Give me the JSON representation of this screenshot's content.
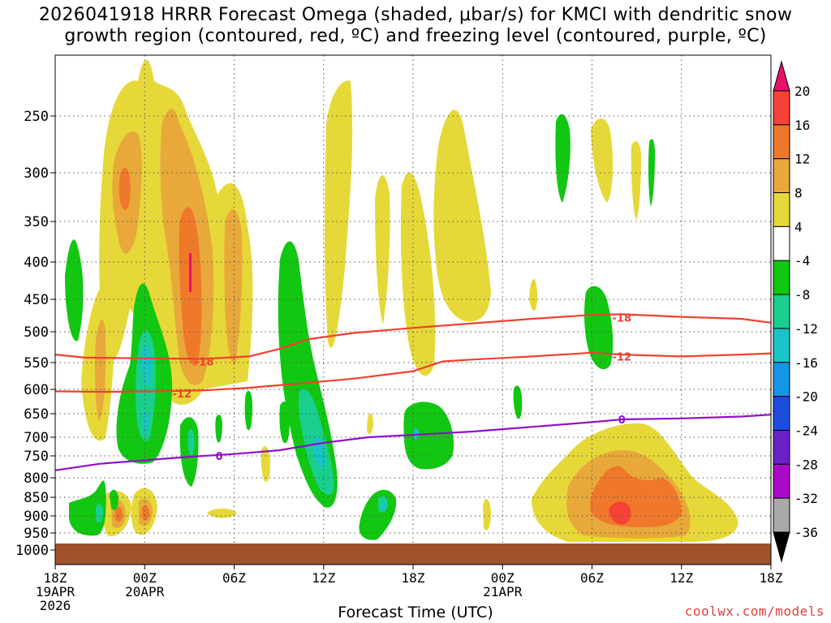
{
  "title": {
    "line1": "2026041918 HRRR Forecast Omega (shaded, μbar/s) for KMCI with dendritic snow",
    "line2": "growth region (contoured, red, ºC) and freezing level (contoured, purple, ºC)"
  },
  "xaxis_title": "Forecast Time (UTC)",
  "credit": "coolwx.com/models",
  "chart_data": {
    "type": "heatmap",
    "x_hours_range": [
      0,
      48
    ],
    "y_pressure_range": [
      215,
      1000
    ],
    "x_ticks": [
      {
        "h": 0,
        "lines": [
          "18Z",
          "19APR",
          "2026"
        ]
      },
      {
        "h": 6,
        "lines": [
          "00Z",
          "20APR"
        ]
      },
      {
        "h": 12,
        "lines": [
          "06Z"
        ]
      },
      {
        "h": 18,
        "lines": [
          "12Z"
        ]
      },
      {
        "h": 24,
        "lines": [
          "18Z"
        ]
      },
      {
        "h": 30,
        "lines": [
          "00Z",
          "21APR"
        ]
      },
      {
        "h": 36,
        "lines": [
          "06Z"
        ]
      },
      {
        "h": 42,
        "lines": [
          "12Z"
        ]
      },
      {
        "h": 48,
        "lines": [
          "18Z"
        ]
      }
    ],
    "y_ticks": [
      250,
      300,
      350,
      400,
      450,
      500,
      550,
      600,
      650,
      700,
      750,
      800,
      850,
      900,
      950,
      1000
    ],
    "colorbar": {
      "colors": [
        "#e8116a",
        "#f64236",
        "#f0782a",
        "#e8a93a",
        "#e6d838",
        "#ffffff",
        "#11c711",
        "#19cf8d",
        "#19c4c8",
        "#1795e6",
        "#1c4de0",
        "#6c20c8",
        "#a80ac8",
        "#a8a8a8",
        "#000000"
      ],
      "labels": [
        "20",
        "16",
        "12",
        "8",
        "4",
        "-4",
        "-8",
        "-12",
        "-16",
        "-20",
        "-24",
        "-28",
        "-32",
        "-36"
      ]
    },
    "contours": [
      {
        "label": "-18",
        "color": "#f04030",
        "label_at": [
          10,
          548
        ],
        "points": [
          [
            0,
            537
          ],
          [
            2,
            542
          ],
          [
            6,
            543
          ],
          [
            10,
            544
          ],
          [
            13,
            540
          ],
          [
            15,
            528
          ],
          [
            17,
            512
          ],
          [
            20,
            502
          ],
          [
            24,
            494
          ],
          [
            28,
            487
          ],
          [
            32,
            480
          ],
          [
            36,
            474
          ],
          [
            38,
            473
          ],
          [
            42,
            477
          ],
          [
            46,
            480
          ],
          [
            48,
            486
          ]
        ],
        "label2_at": [
          38,
          478
        ]
      },
      {
        "label": "-12",
        "color": "#f04030",
        "label_at": [
          8.5,
          608
        ],
        "points": [
          [
            0,
            604
          ],
          [
            3,
            605
          ],
          [
            7,
            604
          ],
          [
            10,
            602
          ],
          [
            13,
            597
          ],
          [
            16,
            590
          ],
          [
            20,
            580
          ],
          [
            24,
            566
          ],
          [
            26,
            548
          ],
          [
            28,
            545
          ],
          [
            32,
            540
          ],
          [
            36,
            534
          ],
          [
            38,
            537
          ],
          [
            42,
            540
          ],
          [
            46,
            537
          ],
          [
            48,
            535
          ]
        ],
        "label2_at": [
          38,
          540
        ]
      },
      {
        "label": "0",
        "color": "#9010c8",
        "label_at": [
          11,
          750
        ],
        "points": [
          [
            0,
            783
          ],
          [
            3,
            768
          ],
          [
            6,
            760
          ],
          [
            9,
            752
          ],
          [
            12,
            745
          ],
          [
            15,
            735
          ],
          [
            18,
            715
          ],
          [
            21,
            700
          ],
          [
            24,
            695
          ],
          [
            28,
            688
          ],
          [
            32,
            678
          ],
          [
            36,
            668
          ],
          [
            38,
            662
          ],
          [
            42,
            660
          ],
          [
            46,
            656
          ],
          [
            48,
            652
          ]
        ],
        "label2_at": [
          38,
          662
        ]
      }
    ]
  }
}
